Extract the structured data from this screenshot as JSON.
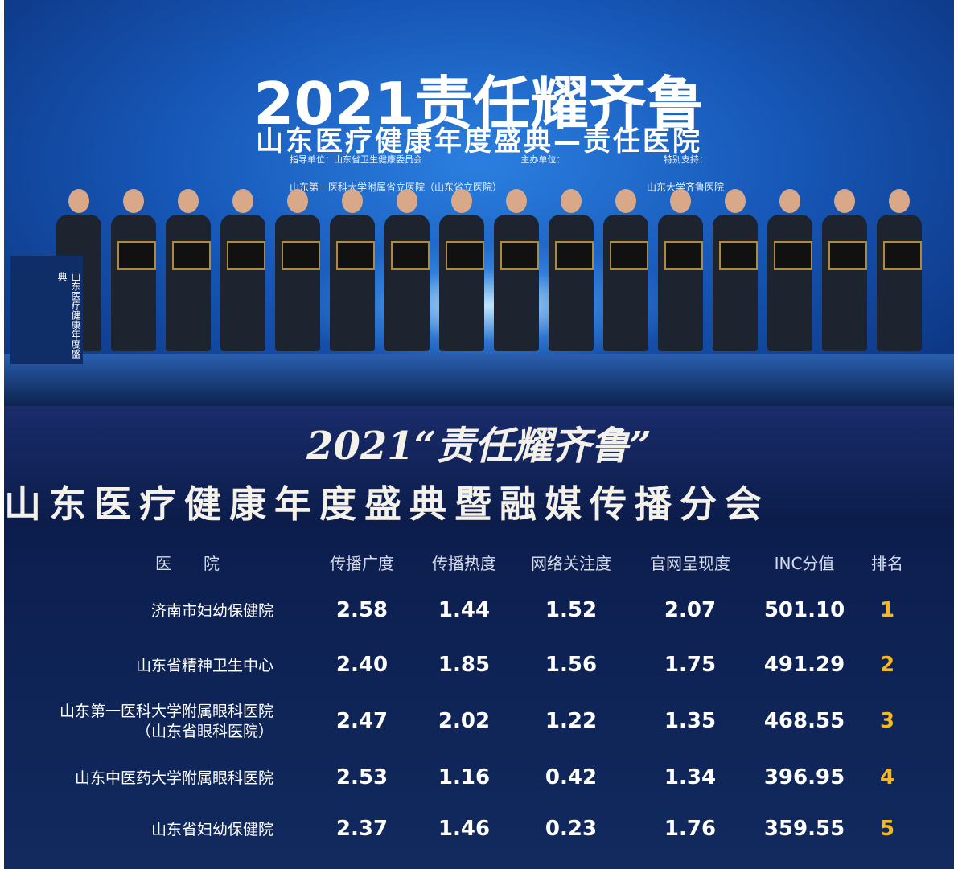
{
  "stage": {
    "title": "2021责任耀齐鲁",
    "subtitle": "山东医疗健康年度盛典—责任医院",
    "credits": [
      "指导单位：山东省卫生健康委员会",
      "主办单位：",
      "特别支持："
    ],
    "hospital_list": [
      "山东第一医科大学附属省立医院（山东省立医院）",
      "山东大学齐鲁医院"
    ],
    "podium": "山东医疗健康年度盛典"
  },
  "banner": {
    "title": "2021“责任耀齐鲁”",
    "subtitle": "山东医疗健康年度盛典暨融媒传播分会"
  },
  "table": {
    "headers": [
      "医　　院",
      "传播广度",
      "传播热度",
      "网络关注度",
      "官网呈现度",
      "INC分值",
      "排名"
    ],
    "rows": [
      {
        "hospital": [
          "济南市妇幼保健院"
        ],
        "scores": [
          "2.58",
          "1.44",
          "1.52",
          "2.07",
          "501.10"
        ],
        "rank": 1
      },
      {
        "hospital": [
          "山东省精神卫生中心"
        ],
        "scores": [
          "2.40",
          "1.85",
          "1.56",
          "1.75",
          "491.29"
        ],
        "rank": 2
      },
      {
        "hospital": [
          "山东第一医科大学附属眼科医院",
          "（山东省眼科医院）"
        ],
        "scores": [
          "2.47",
          "2.02",
          "1.22",
          "1.35",
          "468.55"
        ],
        "rank": 3
      },
      {
        "hospital": [
          "山东中医药大学附属眼科医院"
        ],
        "scores": [
          "2.53",
          "1.16",
          "0.42",
          "1.34",
          "396.95"
        ],
        "rank": 4
      },
      {
        "hospital": [
          "山东省妇幼保健院"
        ],
        "scores": [
          "2.37",
          "1.46",
          "0.23",
          "1.76",
          "359.55"
        ],
        "rank": 5
      }
    ]
  }
}
